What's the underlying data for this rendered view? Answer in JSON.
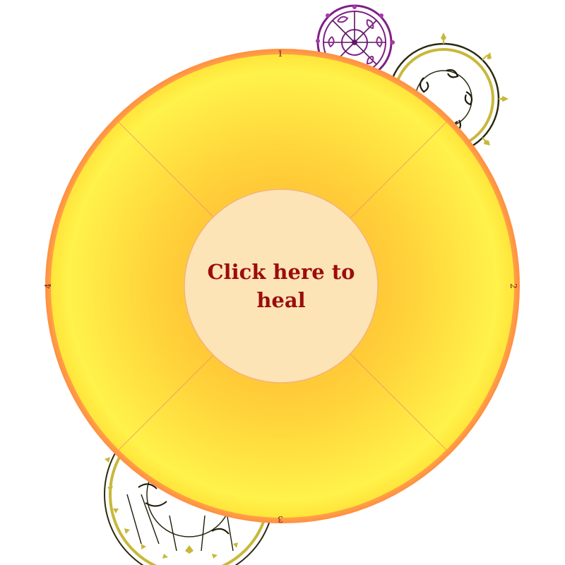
{
  "center_button": {
    "line1": "Click here to",
    "line2": "heal"
  },
  "sectors": [
    {
      "number": "1",
      "position": "top"
    },
    {
      "number": "2",
      "position": "right"
    },
    {
      "number": "3",
      "position": "bottom"
    },
    {
      "number": "4",
      "position": "left"
    }
  ],
  "colors": {
    "outer_ring": "#ff9a44",
    "wheel_edge": "#ffea3d",
    "wheel_center": "#ffae30",
    "center_fill": "#fde4b6",
    "label_color": "#9b0d0d",
    "ornament_purple": "#8a2a8e",
    "ornament_olive": "#c8b83a"
  },
  "ornaments": [
    {
      "name": "purple-mandala",
      "color": "purple"
    },
    {
      "name": "olive-mandala-top-right",
      "color": "olive"
    },
    {
      "name": "olive-mandala-bottom-left",
      "color": "olive"
    }
  ]
}
